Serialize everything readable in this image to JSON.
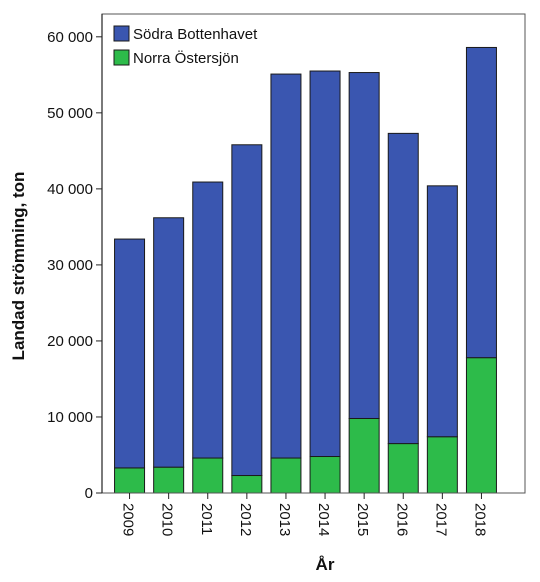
{
  "chart_data": {
    "type": "bar",
    "stacked": true,
    "categories": [
      "2009",
      "2010",
      "2011",
      "2012",
      "2013",
      "2014",
      "2015",
      "2016",
      "2017",
      "2018"
    ],
    "series": [
      {
        "name": "Norra Östersjön",
        "color": "#2dbb4a",
        "values": [
          3300,
          3400,
          4600,
          2300,
          4600,
          4800,
          9800,
          6500,
          7400,
          17800
        ]
      },
      {
        "name": "Södra Bottenhavet",
        "color": "#3a56b0",
        "values": [
          30100,
          32800,
          36300,
          43500,
          50500,
          50700,
          45500,
          40800,
          33000,
          40800
        ]
      }
    ],
    "legend_order": [
      "Södra Bottenhavet",
      "Norra Östersjön"
    ],
    "legend_placement": "top-left",
    "title": "",
    "xlabel": "År",
    "ylabel": "Landad strömming, ton",
    "ylim": [
      0,
      63000
    ],
    "yticks": [
      0,
      10000,
      20000,
      30000,
      40000,
      50000,
      60000
    ],
    "ytick_labels": [
      "0",
      "10 000",
      "20 000",
      "30 000",
      "40 000",
      "50 000",
      "60 000"
    ],
    "grid": false
  }
}
